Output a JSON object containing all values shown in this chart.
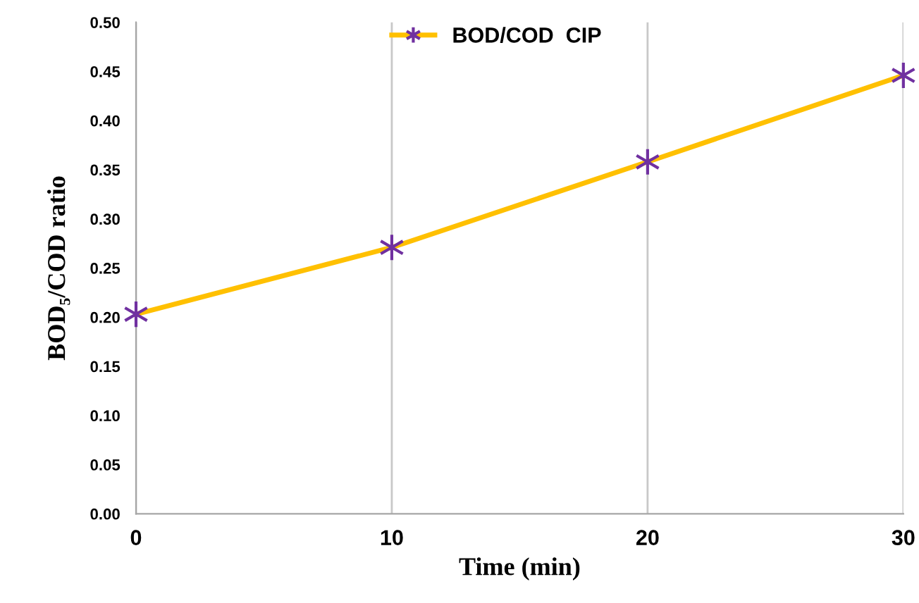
{
  "chart_data": {
    "type": "line",
    "xlabel": "Time (min)",
    "ylabel": "BOD₅/COD ratio",
    "x": [
      0,
      10,
      20,
      30
    ],
    "series": [
      {
        "name": "BOD/COD  CIP",
        "color": "#ffc000",
        "values": [
          0.203,
          0.271,
          0.358,
          0.446
        ]
      }
    ],
    "xlim": [
      0,
      30
    ],
    "xticks": [
      0,
      10,
      20,
      30
    ],
    "ylim": [
      0,
      0.5
    ],
    "yticks": [
      {
        "value": 0,
        "label": "0.00"
      },
      {
        "value": 0.05,
        "label": "0.05"
      },
      {
        "value": 0.1,
        "label": "0.10"
      },
      {
        "value": 0.15,
        "label": "0.15"
      },
      {
        "value": 0.2,
        "label": "0.20"
      },
      {
        "value": 0.25,
        "label": "0.25"
      },
      {
        "value": 0.3,
        "label": "0.30"
      },
      {
        "value": 0.35,
        "label": "0.35"
      },
      {
        "value": 0.4,
        "label": "0.40"
      },
      {
        "value": 0.45,
        "label": "0.45"
      },
      {
        "value": 0.5,
        "label": "0.50"
      }
    ],
    "grid": "x",
    "legend": "top",
    "marker": "cross",
    "line_style": "solid"
  }
}
